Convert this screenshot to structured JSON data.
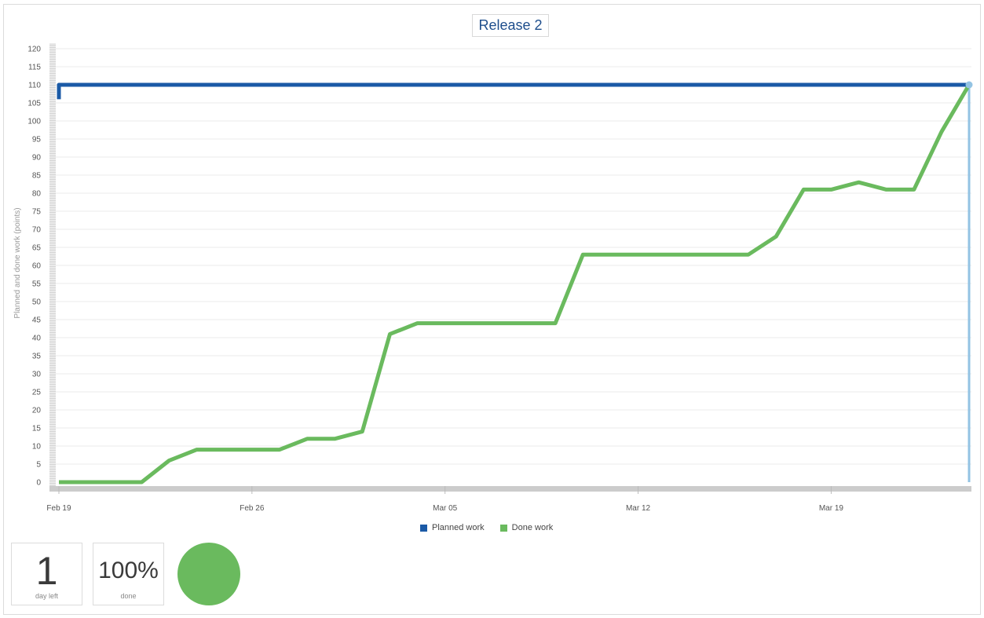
{
  "chart_data": {
    "type": "line",
    "title": "Release 2",
    "ylabel": "Planned and done work (points)",
    "xlabel": "",
    "ylim": [
      0,
      120
    ],
    "yticks": [
      0,
      5,
      10,
      15,
      20,
      25,
      30,
      35,
      40,
      45,
      50,
      55,
      60,
      65,
      70,
      75,
      80,
      85,
      90,
      95,
      100,
      105,
      110,
      115,
      120
    ],
    "x_start": "Feb 19",
    "x_end": "Mar 24",
    "xticks": [
      "Feb 19",
      "Feb 26",
      "Mar 05",
      "Mar 12",
      "Mar 19"
    ],
    "grid": true,
    "legend_position": "bottom-center",
    "series": [
      {
        "name": "Planned work",
        "color": "#1b5aa6",
        "x": [
          "Feb 19",
          "Feb 19",
          "Mar 24"
        ],
        "values": [
          106,
          110,
          110
        ]
      },
      {
        "name": "Done work",
        "color": "#6aba5e",
        "x": [
          "Feb 19",
          "Feb 20",
          "Feb 21",
          "Feb 22",
          "Feb 23",
          "Feb 24",
          "Feb 25",
          "Feb 26",
          "Feb 27",
          "Feb 28",
          "Mar 01",
          "Mar 02",
          "Mar 03",
          "Mar 04",
          "Mar 05",
          "Mar 06",
          "Mar 07",
          "Mar 08",
          "Mar 09",
          "Mar 10",
          "Mar 11",
          "Mar 12",
          "Mar 13",
          "Mar 14",
          "Mar 15",
          "Mar 16",
          "Mar 17",
          "Mar 18",
          "Mar 19",
          "Mar 20",
          "Mar 21",
          "Mar 22",
          "Mar 23",
          "Mar 24"
        ],
        "values": [
          0,
          0,
          0,
          0,
          6,
          9,
          9,
          9,
          9,
          12,
          12,
          14,
          41,
          44,
          44,
          44,
          44,
          44,
          44,
          63,
          63,
          63,
          63,
          63,
          63,
          63,
          68,
          81,
          81,
          83,
          81,
          81,
          97,
          110
        ]
      }
    ],
    "today_marker": {
      "x": "Mar 24",
      "color": "#93c3e3"
    }
  },
  "legend": [
    {
      "label": "Planned work",
      "color": "#1b5aa6"
    },
    {
      "label": "Done work",
      "color": "#6aba5e"
    }
  ],
  "stats": {
    "days_left": {
      "value": "1",
      "label": "day left"
    },
    "done": {
      "value": "100%",
      "label": "done"
    }
  },
  "status_circle_color": "#6aba5e"
}
